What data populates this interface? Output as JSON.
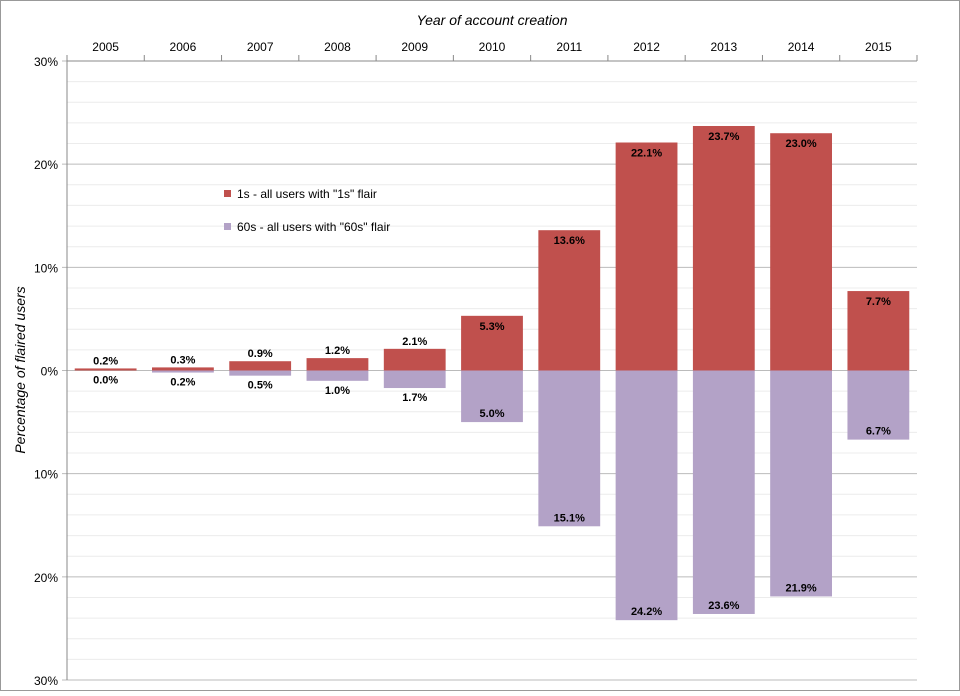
{
  "chart_data": {
    "type": "bar",
    "title": "Year of account creation",
    "xlabel": "Year of account creation",
    "ylabel": "Percentage of flaired users",
    "ylim": [
      -30,
      30
    ],
    "yticks": [
      30,
      20,
      10,
      0,
      -10,
      -20,
      -30
    ],
    "ytick_labels": [
      "30%",
      "20%",
      "10%",
      "0%",
      "10%",
      "20%",
      "30%"
    ],
    "categories": [
      "2005",
      "2006",
      "2007",
      "2008",
      "2009",
      "2010",
      "2011",
      "2012",
      "2013",
      "2014",
      "2015"
    ],
    "series": [
      {
        "name": "1s - all users with \"1s\" flair",
        "color": "#C0504D",
        "values": [
          0.2,
          0.3,
          0.9,
          1.2,
          2.1,
          5.3,
          13.6,
          22.1,
          23.7,
          23.0,
          7.7
        ],
        "labels": [
          "0.2%",
          "0.3%",
          "0.9%",
          "1.2%",
          "2.1%",
          "5.3%",
          "13.6%",
          "22.1%",
          "23.7%",
          "23.0%",
          "7.7%"
        ]
      },
      {
        "name": "60s - all users with \"60s\" flair",
        "color": "#B3A2C7",
        "values": [
          0.0,
          0.2,
          0.5,
          1.0,
          1.7,
          5.0,
          15.1,
          24.2,
          23.6,
          21.9,
          6.7
        ],
        "labels": [
          "0.0%",
          "0.2%",
          "0.5%",
          "1.0%",
          "1.7%",
          "5.0%",
          "15.1%",
          "24.2%",
          "23.6%",
          "21.9%",
          "6.7%"
        ]
      }
    ],
    "legend_position": "upper-left-inside",
    "grid": true,
    "x_axis_position": "top"
  }
}
